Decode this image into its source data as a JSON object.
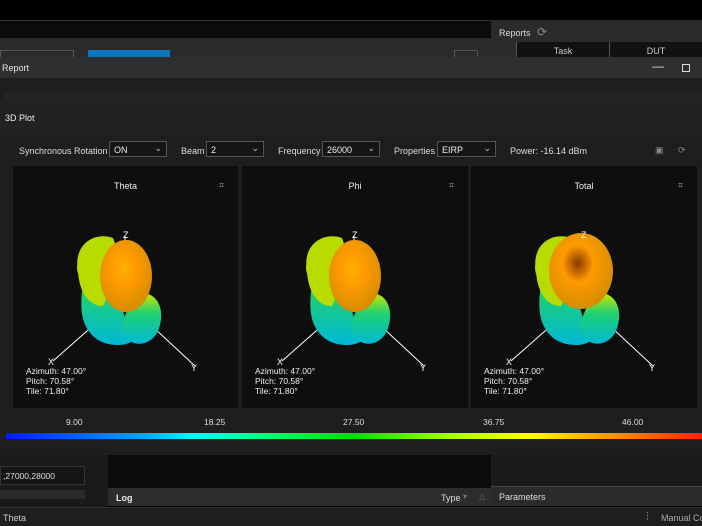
{
  "dialog": {
    "title": "Report",
    "section": "3D Plot",
    "minimize_icon": "minimize-icon",
    "maximize_icon": "maximize-icon"
  },
  "reports": {
    "title": "Reports",
    "columns": [
      "Task",
      "DUT"
    ]
  },
  "toolbar": {
    "sync_label": "Synchronous Rotation",
    "sync_value": "ON",
    "beam_label": "Beam",
    "beam_value": "2",
    "freq_label": "Frequency",
    "freq_value": "26000",
    "prop_label": "Properties",
    "prop_value": "EIRP",
    "power": "Power: -16.14 dBm"
  },
  "plots": [
    {
      "title": "Theta",
      "azimuth": "Azimuth: 47.00°",
      "pitch": "Pitch: 70.58°",
      "tile": "Tile: 71.80°"
    },
    {
      "title": "Phi",
      "azimuth": "Azimuth: 47.00°",
      "pitch": "Pitch: 70.58°",
      "tile": "Tile: 71.80°"
    },
    {
      "title": "Total",
      "azimuth": "Azimuth: 47.00°",
      "pitch": "Pitch: 70.58°",
      "tile": "Tile: 71.80°"
    }
  ],
  "axes": {
    "z": "Z",
    "x": "X",
    "y": "Y"
  },
  "colorbar": {
    "ticks": [
      "9.00",
      "18.25",
      "27.50",
      "36.75",
      "46.00"
    ],
    "min": 9.0,
    "max": 46.0
  },
  "bottom": {
    "field_value": ",27000,28000",
    "log_title": "Log",
    "type_label": "Type",
    "parameters": "Parameters",
    "status_left": "Theta",
    "status_right": "Manual Co"
  }
}
